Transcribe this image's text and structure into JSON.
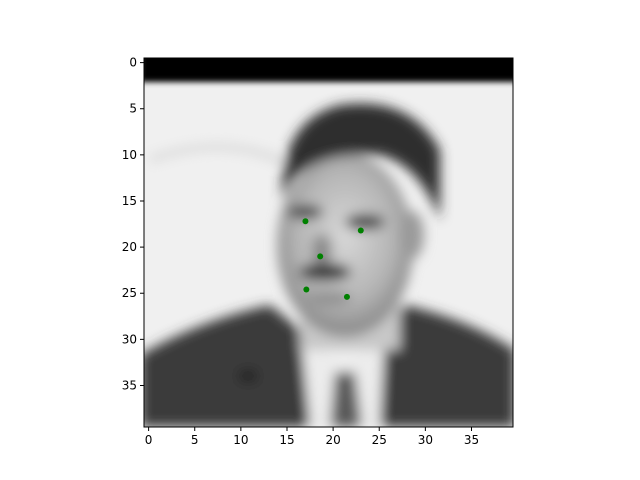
{
  "chart_data": {
    "type": "scatter",
    "title": "",
    "xlabel": "",
    "ylabel": "",
    "xlim": [
      -0.5,
      39.5
    ],
    "ylim": [
      39.5,
      -0.5
    ],
    "y_inverted": true,
    "xticks": [
      0,
      5,
      10,
      15,
      20,
      25,
      30,
      35
    ],
    "yticks": [
      0,
      5,
      10,
      15,
      20,
      25,
      30,
      35
    ],
    "background_image": "grayscale-face-photo",
    "grid": false,
    "series": [
      {
        "marker_color": "#008000",
        "points": [
          {
            "x": 17.0,
            "y": 17.2
          },
          {
            "x": 23.0,
            "y": 18.2
          },
          {
            "x": 18.6,
            "y": 21.0
          },
          {
            "x": 17.1,
            "y": 24.6
          },
          {
            "x": 21.5,
            "y": 25.4
          }
        ]
      }
    ]
  }
}
